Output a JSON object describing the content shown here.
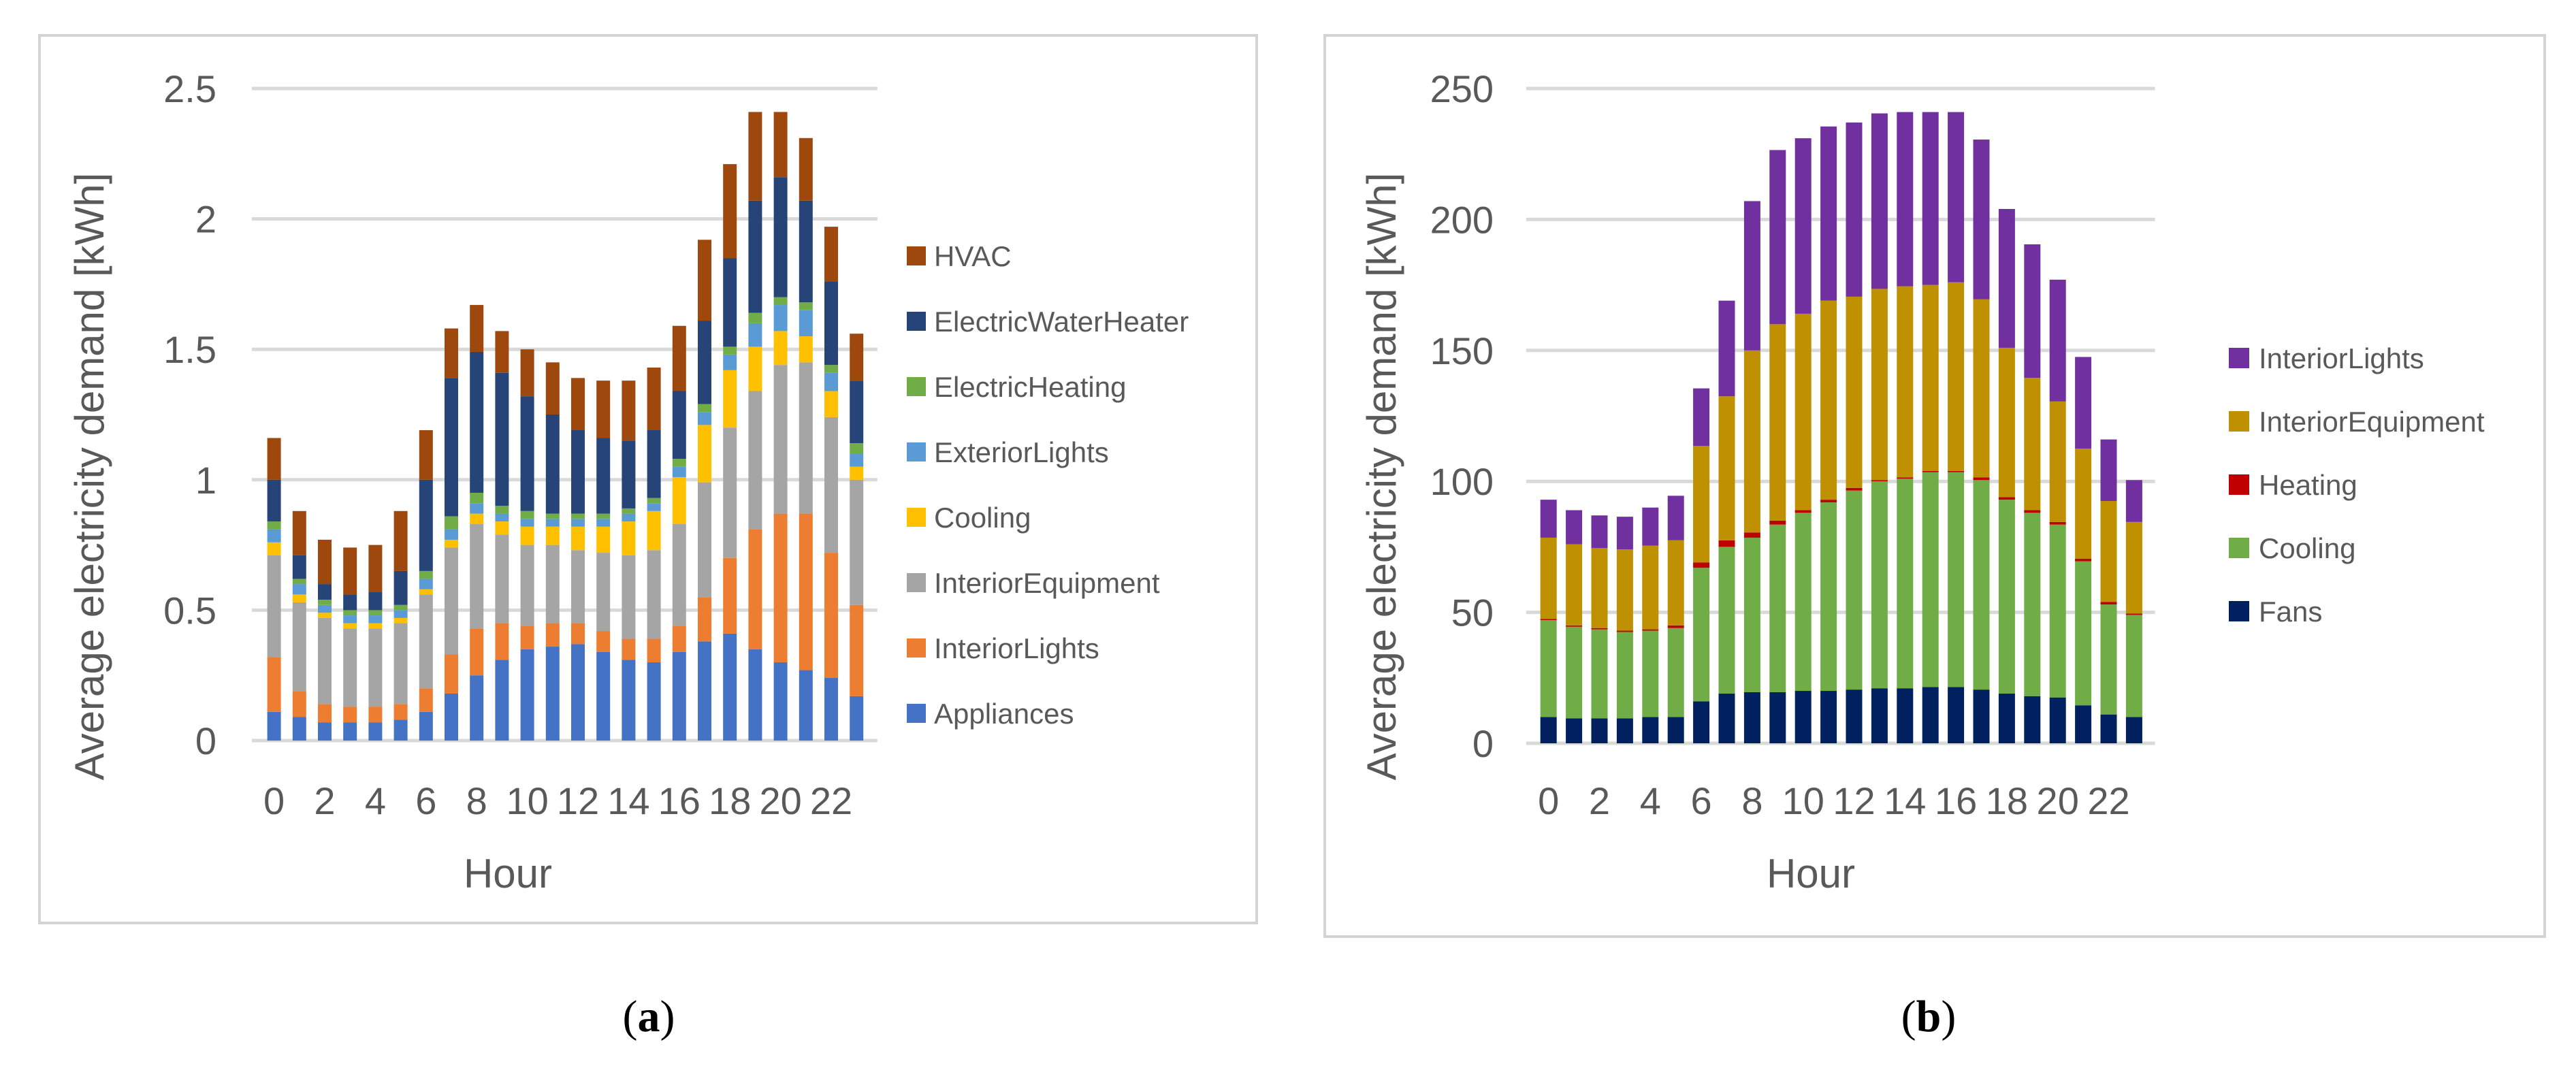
{
  "figure_captions": [
    {
      "open": "(",
      "letter": "a",
      "close": ")"
    },
    {
      "open": "(",
      "letter": "b",
      "close": ")"
    }
  ],
  "chart_data": [
    {
      "type": "bar",
      "stacked": true,
      "title": "",
      "xlabel": "Hour",
      "ylabel": "Average electricity demand [kWh]",
      "ylim": [
        0,
        2.5
      ],
      "yticks": [
        "0",
        "0.5",
        "1",
        "1.5",
        "2",
        "2.5"
      ],
      "ytick_values": [
        0,
        0.5,
        1,
        1.5,
        2,
        2.5
      ],
      "grid": true,
      "legend_position": "right",
      "categories": [
        0,
        1,
        2,
        3,
        4,
        5,
        6,
        7,
        8,
        9,
        10,
        11,
        12,
        13,
        14,
        15,
        16,
        17,
        18,
        19,
        20,
        21,
        22,
        23
      ],
      "xtick_labels": [
        "0",
        "2",
        "4",
        "6",
        "8",
        "10",
        "12",
        "14",
        "16",
        "18",
        "20",
        "22"
      ],
      "series": [
        {
          "name": "Appliances",
          "color": "#4472c4",
          "values": [
            0.11,
            0.09,
            0.07,
            0.07,
            0.07,
            0.08,
            0.11,
            0.18,
            0.25,
            0.31,
            0.35,
            0.36,
            0.37,
            0.34,
            0.31,
            0.3,
            0.34,
            0.38,
            0.41,
            0.35,
            0.3,
            0.27,
            0.24,
            0.17
          ]
        },
        {
          "name": "InteriorLights",
          "color": "#ed7d31",
          "values": [
            0.21,
            0.1,
            0.07,
            0.06,
            0.06,
            0.06,
            0.09,
            0.15,
            0.18,
            0.14,
            0.09,
            0.09,
            0.08,
            0.08,
            0.08,
            0.09,
            0.1,
            0.17,
            0.29,
            0.46,
            0.57,
            0.6,
            0.48,
            0.35
          ]
        },
        {
          "name": "InteriorEquipment",
          "color": "#a5a5a5",
          "values": [
            0.39,
            0.34,
            0.33,
            0.3,
            0.3,
            0.31,
            0.36,
            0.41,
            0.4,
            0.34,
            0.31,
            0.3,
            0.28,
            0.3,
            0.32,
            0.34,
            0.39,
            0.44,
            0.5,
            0.53,
            0.57,
            0.58,
            0.52,
            0.48
          ]
        },
        {
          "name": "Cooling",
          "color": "#ffc000",
          "values": [
            0.05,
            0.03,
            0.02,
            0.02,
            0.02,
            0.02,
            0.02,
            0.03,
            0.04,
            0.05,
            0.07,
            0.07,
            0.09,
            0.1,
            0.13,
            0.15,
            0.18,
            0.22,
            0.22,
            0.17,
            0.13,
            0.1,
            0.1,
            0.05
          ]
        },
        {
          "name": "ExteriorLights",
          "color": "#5b9bd5",
          "values": [
            0.05,
            0.04,
            0.03,
            0.03,
            0.03,
            0.03,
            0.04,
            0.04,
            0.04,
            0.03,
            0.03,
            0.03,
            0.03,
            0.03,
            0.03,
            0.03,
            0.04,
            0.05,
            0.06,
            0.09,
            0.1,
            0.1,
            0.07,
            0.05
          ]
        },
        {
          "name": "ElectricHeating",
          "color": "#70ad47",
          "values": [
            0.03,
            0.02,
            0.02,
            0.02,
            0.02,
            0.02,
            0.03,
            0.05,
            0.04,
            0.03,
            0.03,
            0.02,
            0.02,
            0.02,
            0.02,
            0.02,
            0.03,
            0.03,
            0.03,
            0.04,
            0.03,
            0.03,
            0.03,
            0.04
          ]
        },
        {
          "name": "ElectricWaterHeater",
          "color": "#264478",
          "values": [
            0.16,
            0.09,
            0.06,
            0.06,
            0.07,
            0.13,
            0.35,
            0.53,
            0.54,
            0.51,
            0.44,
            0.38,
            0.32,
            0.29,
            0.26,
            0.26,
            0.26,
            0.32,
            0.34,
            0.43,
            0.46,
            0.39,
            0.32,
            0.24
          ]
        },
        {
          "name": "HVAC",
          "color": "#9e480e",
          "values": [
            0.16,
            0.17,
            0.17,
            0.18,
            0.18,
            0.23,
            0.19,
            0.19,
            0.18,
            0.16,
            0.18,
            0.2,
            0.2,
            0.22,
            0.23,
            0.24,
            0.25,
            0.31,
            0.36,
            0.34,
            0.25,
            0.24,
            0.21,
            0.18
          ]
        }
      ]
    },
    {
      "type": "bar",
      "stacked": true,
      "title": "",
      "xlabel": "Hour",
      "ylabel": "Average electricity demand [kWh]",
      "ylim": [
        0,
        250
      ],
      "yticks": [
        "0",
        "50",
        "100",
        "150",
        "200",
        "250"
      ],
      "ytick_values": [
        0,
        50,
        100,
        150,
        200,
        250
      ],
      "grid": true,
      "legend_position": "right",
      "categories": [
        0,
        1,
        2,
        3,
        4,
        5,
        6,
        7,
        8,
        9,
        10,
        11,
        12,
        13,
        14,
        15,
        16,
        17,
        18,
        19,
        20,
        21,
        22,
        23
      ],
      "xtick_labels": [
        "0",
        "2",
        "4",
        "6",
        "8",
        "10",
        "12",
        "14",
        "16",
        "18",
        "20",
        "22"
      ],
      "series": [
        {
          "name": "Fans",
          "color": "#002060",
          "values": [
            10,
            9.5,
            9.5,
            9.5,
            10,
            10,
            16,
            19,
            19.5,
            19.5,
            20,
            20,
            20.5,
            21,
            21,
            21.5,
            21.5,
            20.5,
            19,
            18,
            17.5,
            14.5,
            11,
            10
          ]
        },
        {
          "name": "Cooling",
          "color": "#70ad47",
          "values": [
            37,
            35,
            34,
            33,
            33,
            34,
            51,
            56,
            59,
            64,
            68,
            72,
            76,
            79,
            80,
            82,
            82,
            80,
            74,
            70,
            66,
            55,
            42,
            39
          ]
        },
        {
          "name": "Heating",
          "color": "#c00000",
          "values": [
            0.5,
            0.5,
            0.5,
            0.5,
            0.5,
            1,
            2,
            2.5,
            2,
            1.5,
            1,
            1,
            1,
            0.5,
            0.5,
            0.5,
            0.5,
            1,
            1,
            1,
            1,
            1,
            1,
            0.5
          ]
        },
        {
          "name": "InteriorEquipment",
          "color": "#bf9000",
          "values": [
            31,
            31,
            30.5,
            31,
            32,
            32.5,
            44.5,
            55,
            69.5,
            75,
            75,
            76,
            73,
            73,
            73,
            71,
            72,
            68,
            57,
            50.5,
            46,
            42,
            38.5,
            35
          ]
        },
        {
          "name": "InteriorLights",
          "color": "#7030a0",
          "values": [
            14.5,
            13,
            12.5,
            12.5,
            14.5,
            17,
            22,
            36.5,
            57,
            66.5,
            67,
            66.5,
            66.5,
            67,
            66.5,
            66,
            65,
            61,
            53,
            51,
            46.5,
            35,
            23.5,
            16
          ]
        }
      ]
    }
  ]
}
